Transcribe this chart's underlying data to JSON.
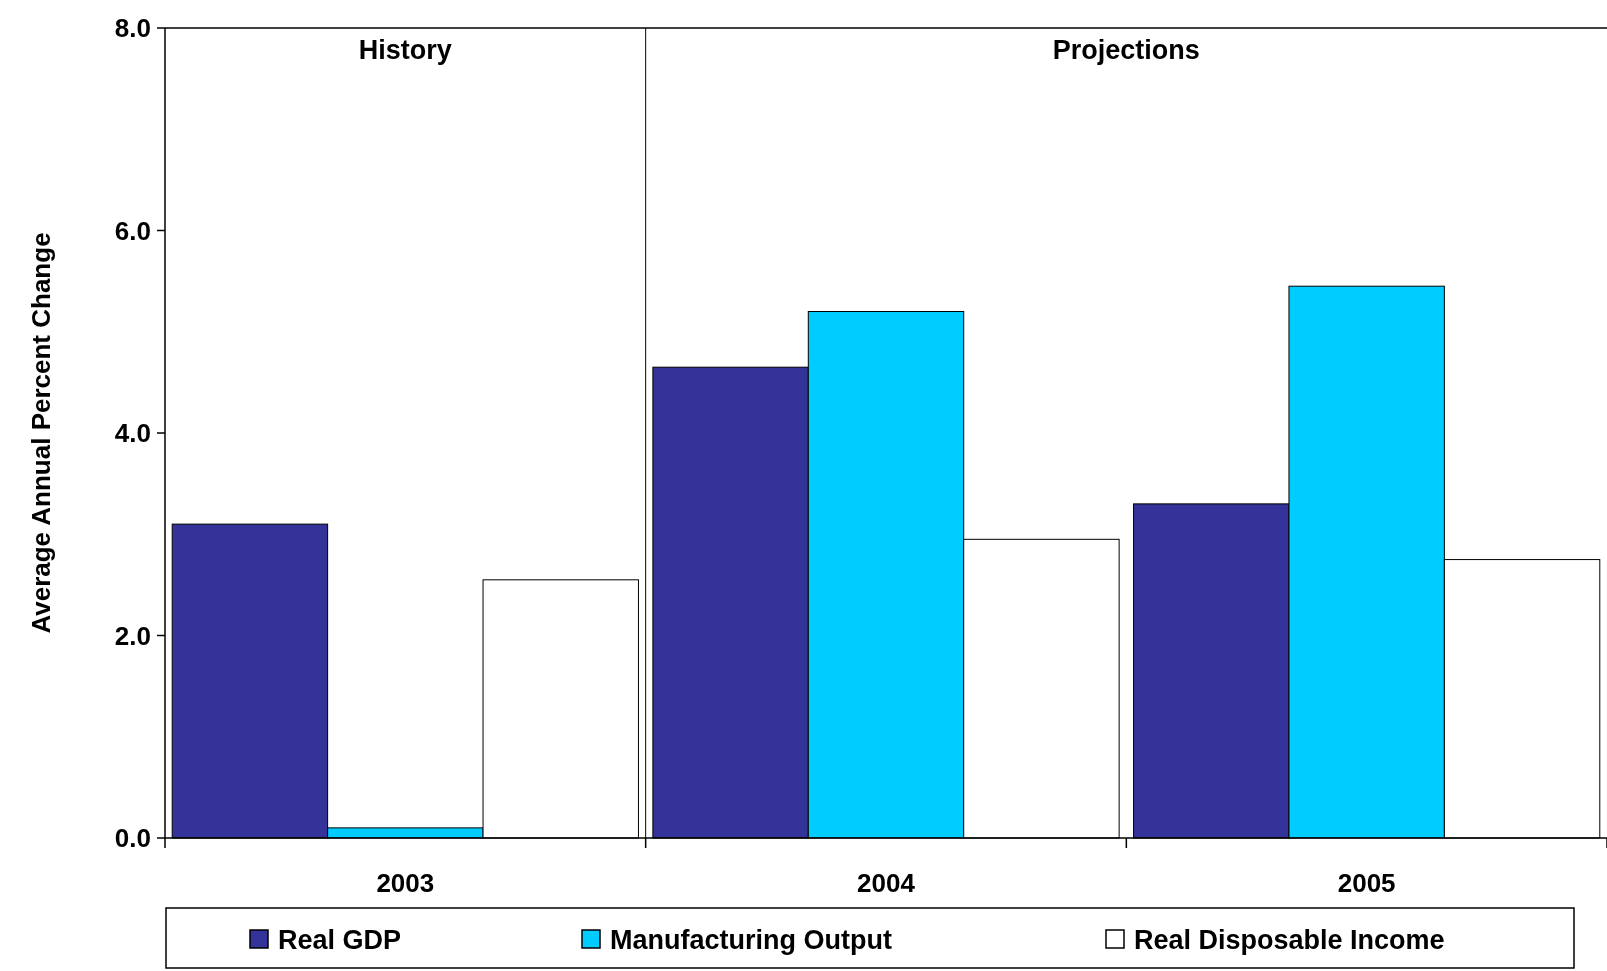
{
  "chart_data": {
    "type": "bar",
    "ylabel": "Average Annual Percent Change",
    "categories": [
      "2003",
      "2004",
      "2005"
    ],
    "series": [
      {
        "name": "Real GDP",
        "color": "#333399",
        "values": [
          3.1,
          4.65,
          3.3
        ]
      },
      {
        "name": "Manufacturing Output",
        "color": "#00ccff",
        "values": [
          0.1,
          5.2,
          5.45
        ]
      },
      {
        "name": "Real Disposable Income",
        "color": "#ffffff",
        "values": [
          2.55,
          2.95,
          2.75
        ]
      }
    ],
    "ylim": [
      0,
      8
    ],
    "yticks": [
      {
        "value": 0,
        "label": "0.0"
      },
      {
        "value": 2,
        "label": "2.0"
      },
      {
        "value": 4,
        "label": "4.0"
      },
      {
        "value": 6,
        "label": "6.0"
      },
      {
        "value": 8,
        "label": "8.0"
      }
    ],
    "annotations": [
      "History",
      "Projections"
    ],
    "grid": false,
    "legend": "bottom"
  }
}
